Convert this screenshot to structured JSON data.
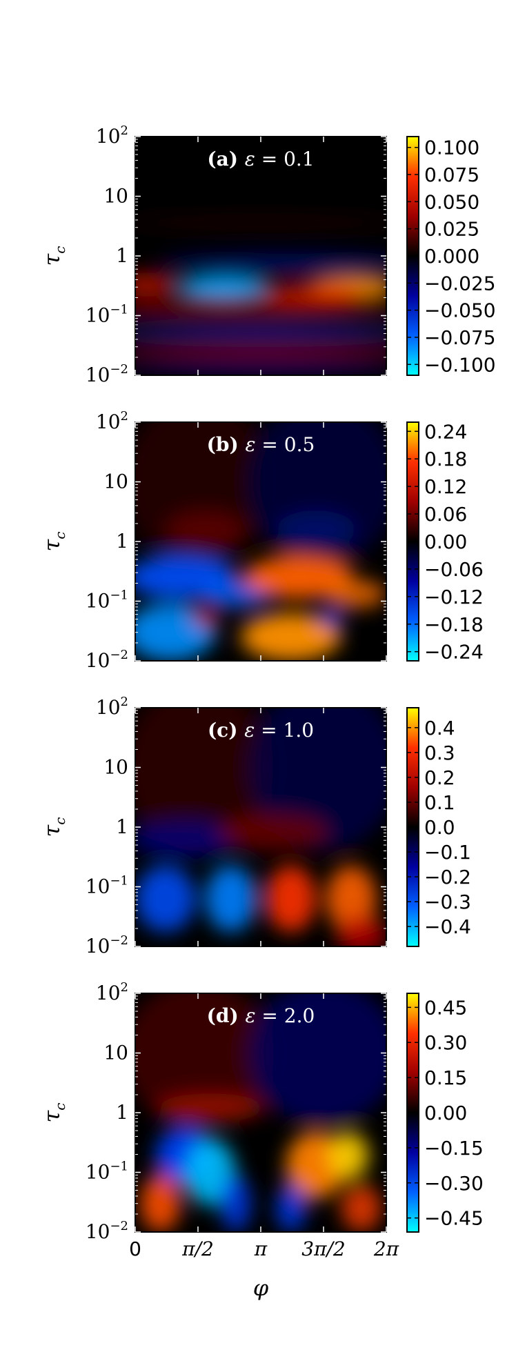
{
  "chart_data": [
    {
      "type": "heatmap",
      "panel_label": "(a)",
      "title_symbol": "ε",
      "title_value": "0.1",
      "ylabel": "τ_c",
      "y_scale": "log",
      "ylim": [
        0.01,
        100
      ],
      "xlim": [
        0,
        6.2832
      ],
      "y_ticks": [
        {
          "base": "10",
          "exp": "2"
        },
        {
          "base": "10",
          "exp": ""
        },
        {
          "base": "1",
          "exp": ""
        },
        {
          "base": "10",
          "exp": "−1"
        },
        {
          "base": "10",
          "exp": "−2"
        }
      ],
      "colorbar_ticks": [
        "0.100",
        "0.075",
        "0.050",
        "0.025",
        "0.000",
        "−0.025",
        "−0.050",
        "−0.075",
        "−0.100"
      ],
      "vlim": [
        -0.11,
        0.11
      ]
    },
    {
      "type": "heatmap",
      "panel_label": "(b)",
      "title_symbol": "ε",
      "title_value": "0.5",
      "ylabel": "τ_c",
      "y_scale": "log",
      "ylim": [
        0.01,
        100
      ],
      "xlim": [
        0,
        6.2832
      ],
      "y_ticks": [
        {
          "base": "10",
          "exp": "2"
        },
        {
          "base": "10",
          "exp": ""
        },
        {
          "base": "1",
          "exp": ""
        },
        {
          "base": "10",
          "exp": "−1"
        },
        {
          "base": "10",
          "exp": "−2"
        }
      ],
      "colorbar_ticks": [
        "0.24",
        "0.18",
        "0.12",
        "0.06",
        "0.00",
        "−0.06",
        "−0.12",
        "−0.18",
        "−0.24"
      ],
      "vlim": [
        -0.26,
        0.26
      ]
    },
    {
      "type": "heatmap",
      "panel_label": "(c)",
      "title_symbol": "ε",
      "title_value": "1.0",
      "ylabel": "τ_c",
      "y_scale": "log",
      "ylim": [
        0.01,
        100
      ],
      "xlim": [
        0,
        6.2832
      ],
      "y_ticks": [
        {
          "base": "10",
          "exp": "2"
        },
        {
          "base": "10",
          "exp": ""
        },
        {
          "base": "1",
          "exp": ""
        },
        {
          "base": "10",
          "exp": "−1"
        },
        {
          "base": "10",
          "exp": "−2"
        }
      ],
      "colorbar_ticks": [
        "0.4",
        "0.3",
        "0.2",
        "0.1",
        "0.0",
        "−0.1",
        "−0.2",
        "−0.3",
        "−0.4"
      ],
      "vlim": [
        -0.48,
        0.48
      ]
    },
    {
      "type": "heatmap",
      "panel_label": "(d)",
      "title_symbol": "ε",
      "title_value": "2.0",
      "ylabel": "τ_c",
      "y_scale": "log",
      "ylim": [
        0.01,
        100
      ],
      "xlim": [
        0,
        6.2832
      ],
      "xlabel": "φ",
      "x_ticks": [
        "0",
        "π/2",
        "π",
        "3π/2",
        "2π"
      ],
      "y_ticks": [
        {
          "base": "10",
          "exp": "2"
        },
        {
          "base": "10",
          "exp": ""
        },
        {
          "base": "1",
          "exp": ""
        },
        {
          "base": "10",
          "exp": "−1"
        },
        {
          "base": "10",
          "exp": "−2"
        }
      ],
      "colorbar_ticks": [
        "0.45",
        "0.30",
        "0.15",
        "0.00",
        "−0.15",
        "−0.30",
        "−0.45"
      ],
      "vlim": [
        -0.51,
        0.51
      ]
    }
  ],
  "colormap": {
    "stops": [
      "#00ffff",
      "#0060ff",
      "#0000a0",
      "#000000",
      "#a00000",
      "#ff3000",
      "#ffff00"
    ]
  }
}
